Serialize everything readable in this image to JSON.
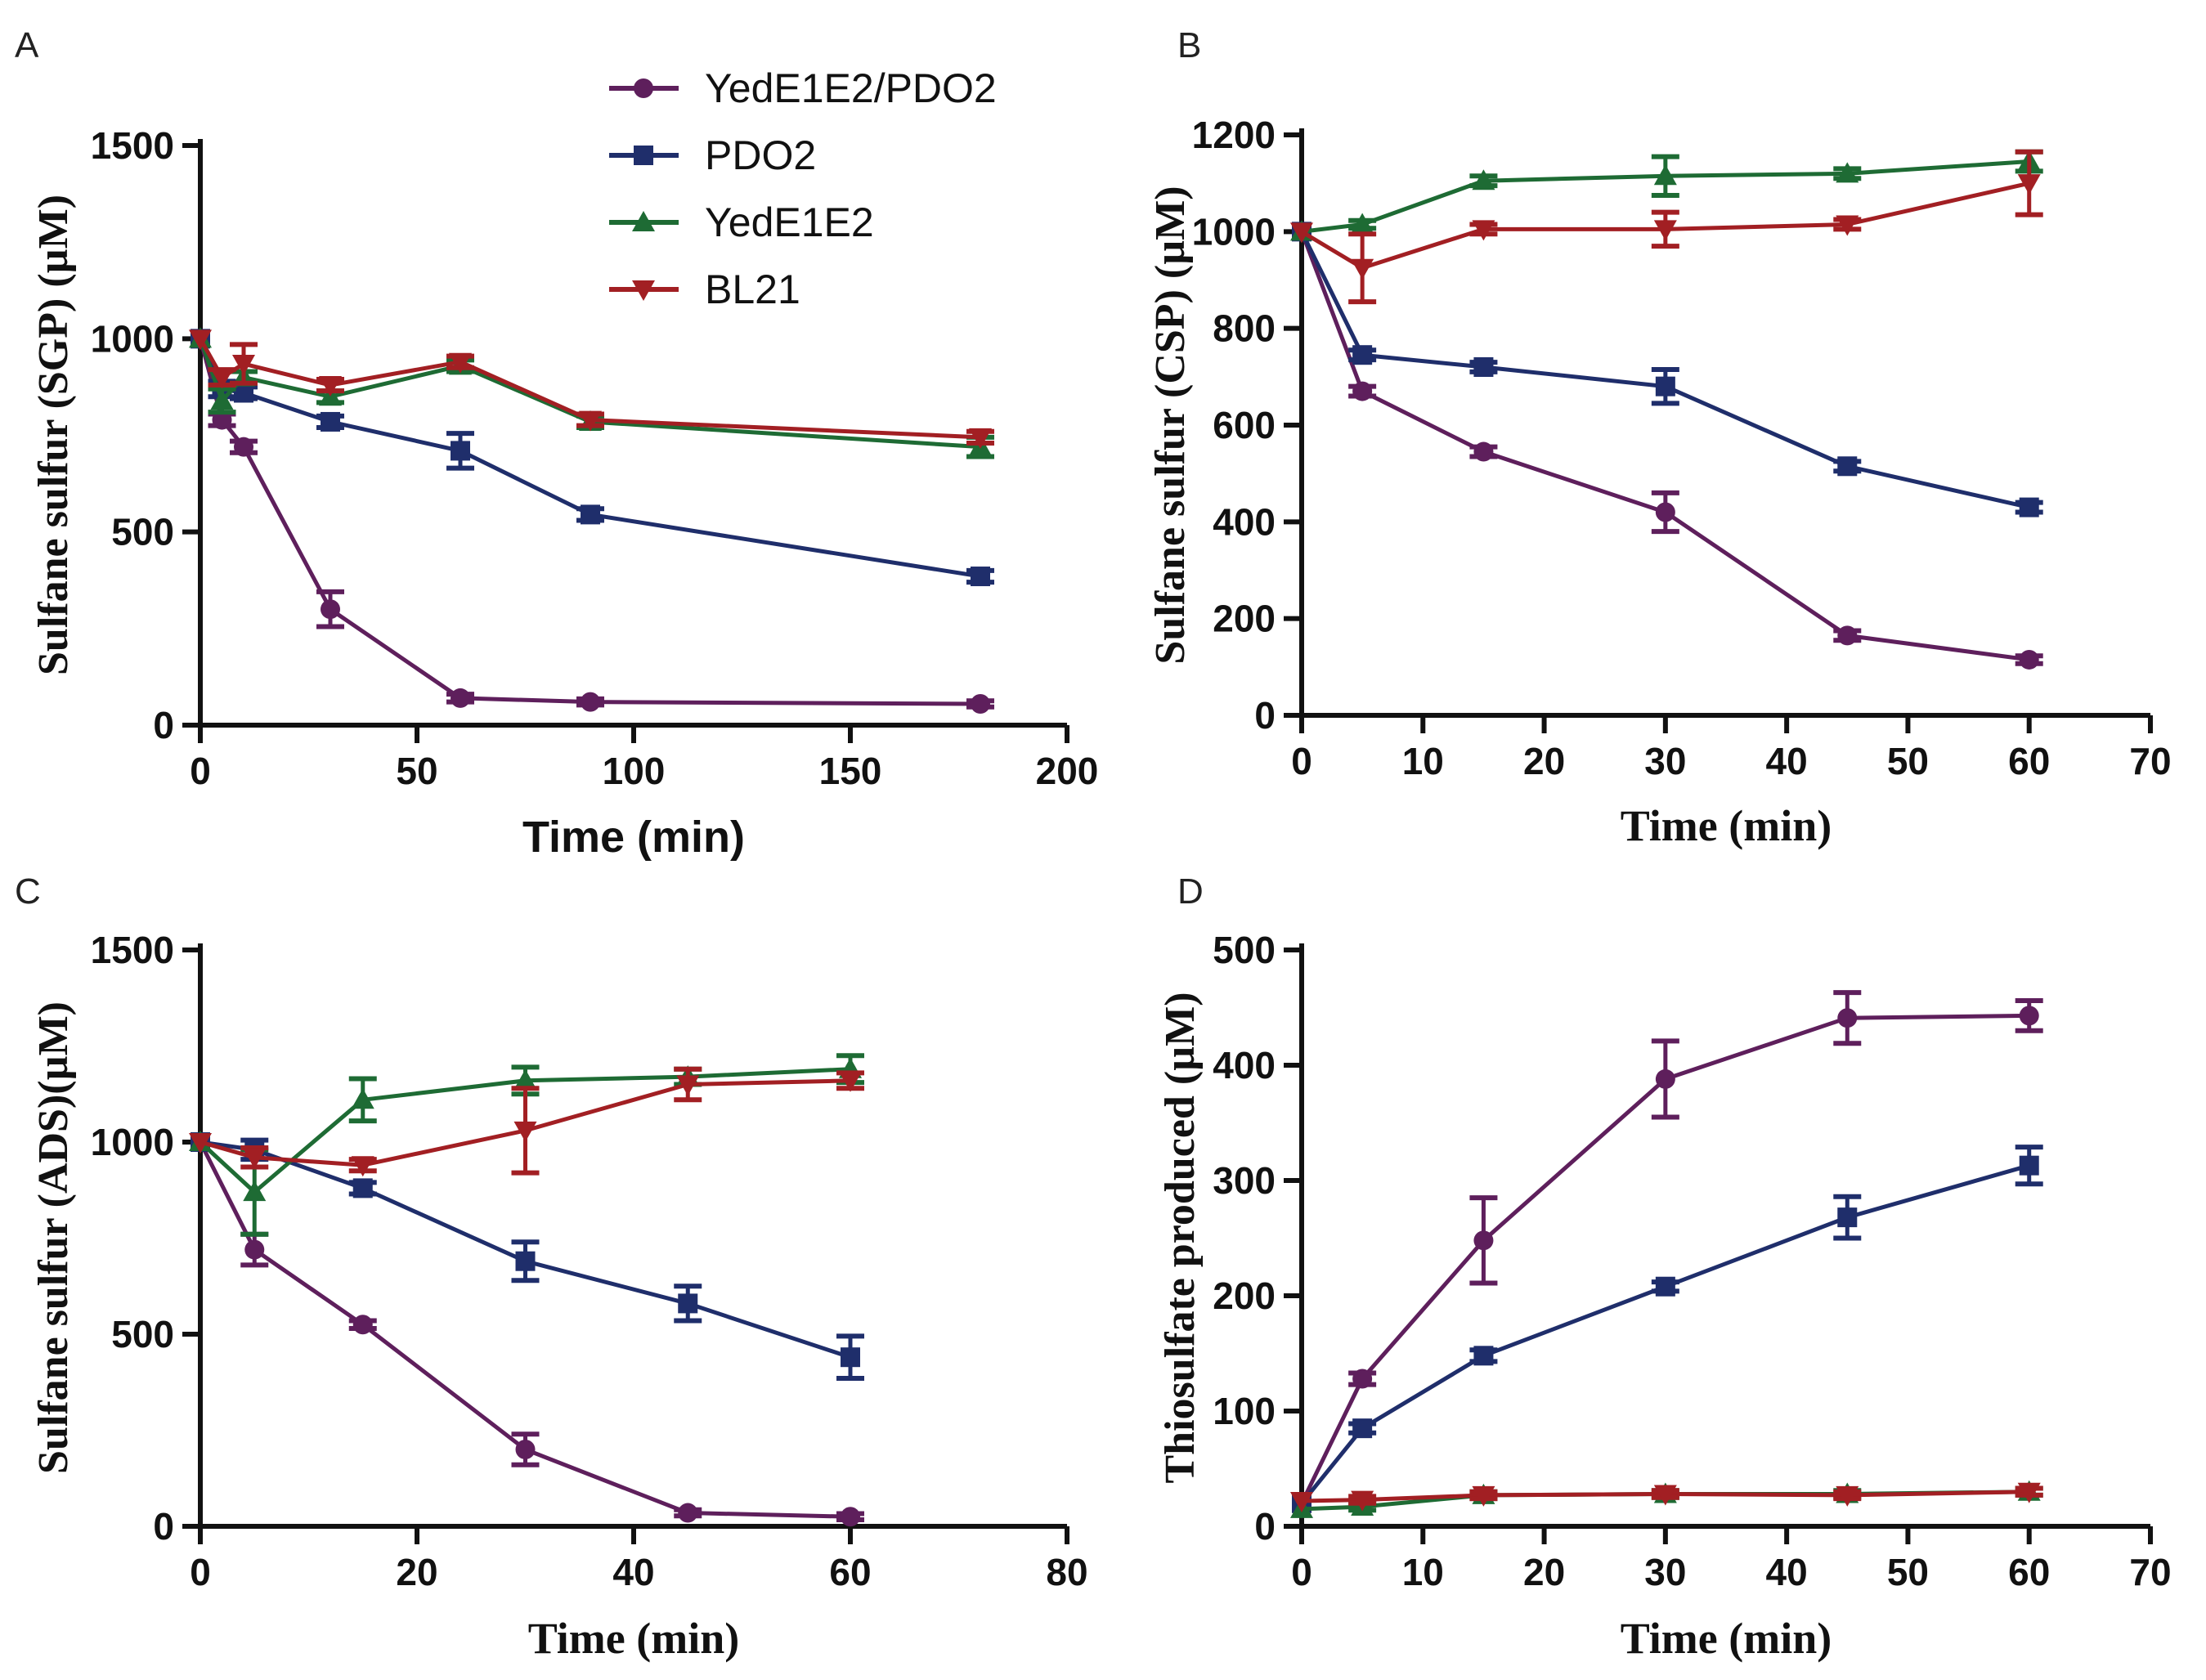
{
  "legend": {
    "placement": "top-center (panel A)",
    "entries": [
      {
        "key": "yede1e2_pdo2",
        "label": "YedE1E2/PDO2",
        "color": "#5E1F5C",
        "marker": "circle"
      },
      {
        "key": "pdo2",
        "label": "PDO2",
        "color": "#1F2E6B",
        "marker": "square"
      },
      {
        "key": "yede1e2",
        "label": "YedE1E2",
        "color": "#1E6B34",
        "marker": "triangle-up"
      },
      {
        "key": "bl21",
        "label": "BL21",
        "color": "#A21F23",
        "marker": "triangle-down"
      }
    ]
  },
  "chart_data": [
    {
      "panel": "A",
      "type": "line",
      "xlabel": "Time (min)",
      "ylabel": "Sulfane sulfur (SGP) (µM)",
      "xlim": [
        0,
        200
      ],
      "ylim": [
        0,
        1500
      ],
      "xticks": [
        0,
        50,
        100,
        150,
        200
      ],
      "yticks": [
        0,
        500,
        1000,
        1500
      ],
      "series": [
        {
          "key": "yede1e2_pdo2",
          "x": [
            0,
            5,
            10,
            30,
            60,
            90,
            180
          ],
          "y": [
            1000,
            790,
            720,
            300,
            70,
            60,
            55
          ],
          "err": [
            0,
            15,
            15,
            45,
            10,
            8,
            8
          ]
        },
        {
          "key": "pdo2",
          "x": [
            0,
            5,
            10,
            30,
            60,
            90,
            180
          ],
          "y": [
            1000,
            870,
            860,
            785,
            710,
            545,
            385
          ],
          "err": [
            0,
            20,
            15,
            15,
            45,
            15,
            15
          ]
        },
        {
          "key": "yede1e2",
          "x": [
            0,
            5,
            10,
            30,
            60,
            90,
            180
          ],
          "y": [
            1000,
            840,
            900,
            850,
            930,
            785,
            720
          ],
          "err": [
            0,
            30,
            15,
            15,
            15,
            15,
            25
          ]
        },
        {
          "key": "bl21",
          "x": [
            0,
            5,
            10,
            30,
            60,
            90,
            180
          ],
          "y": [
            1000,
            900,
            935,
            880,
            940,
            790,
            745
          ],
          "err": [
            0,
            20,
            50,
            15,
            15,
            15,
            15
          ]
        }
      ]
    },
    {
      "panel": "B",
      "type": "line",
      "xlabel": "Time (min)",
      "ylabel": "Sulfane sulfur (CSP) (µM)",
      "xlim": [
        0,
        70
      ],
      "ylim": [
        0,
        1200
      ],
      "xticks": [
        0,
        10,
        20,
        30,
        40,
        50,
        60,
        70
      ],
      "yticks": [
        0,
        200,
        400,
        600,
        800,
        1000,
        1200
      ],
      "series": [
        {
          "key": "yede1e2_pdo2",
          "x": [
            0,
            5,
            15,
            30,
            45,
            60
          ],
          "y": [
            1000,
            670,
            545,
            420,
            165,
            115
          ],
          "err": [
            0,
            10,
            10,
            40,
            10,
            8
          ]
        },
        {
          "key": "pdo2",
          "x": [
            0,
            5,
            15,
            30,
            45,
            60
          ],
          "y": [
            1000,
            745,
            720,
            680,
            515,
            430
          ],
          "err": [
            0,
            10,
            10,
            35,
            10,
            10
          ]
        },
        {
          "key": "yede1e2",
          "x": [
            0,
            5,
            15,
            30,
            45,
            60
          ],
          "y": [
            1000,
            1015,
            1105,
            1115,
            1120,
            1145
          ],
          "err": [
            0,
            8,
            10,
            40,
            10,
            20
          ]
        },
        {
          "key": "bl21",
          "x": [
            0,
            5,
            15,
            30,
            45,
            60
          ],
          "y": [
            1000,
            925,
            1005,
            1005,
            1015,
            1100
          ],
          "err": [
            0,
            70,
            10,
            35,
            10,
            65
          ]
        }
      ]
    },
    {
      "panel": "C",
      "type": "line",
      "xlabel": "Time (min)",
      "ylabel": "Sulfane sulfur (ADS)(µM)",
      "xlim": [
        0,
        80
      ],
      "ylim": [
        0,
        1500
      ],
      "xticks": [
        0,
        20,
        40,
        60,
        80
      ],
      "yticks": [
        0,
        500,
        1000,
        1500
      ],
      "series": [
        {
          "key": "yede1e2_pdo2",
          "x": [
            0,
            5,
            15,
            30,
            45,
            60
          ],
          "y": [
            1000,
            720,
            525,
            200,
            35,
            25
          ],
          "err": [
            0,
            40,
            10,
            40,
            8,
            8
          ]
        },
        {
          "key": "pdo2",
          "x": [
            0,
            5,
            15,
            30,
            45,
            60
          ],
          "y": [
            1000,
            980,
            880,
            690,
            580,
            440
          ],
          "err": [
            0,
            25,
            15,
            50,
            45,
            55
          ]
        },
        {
          "key": "yede1e2",
          "x": [
            0,
            5,
            15,
            30,
            45,
            60
          ],
          "y": [
            1000,
            870,
            1110,
            1160,
            1170,
            1190
          ],
          "err": [
            0,
            110,
            55,
            35,
            20,
            35
          ]
        },
        {
          "key": "bl21",
          "x": [
            0,
            5,
            15,
            30,
            45,
            60
          ],
          "y": [
            1000,
            960,
            940,
            1030,
            1150,
            1160
          ],
          "err": [
            0,
            25,
            15,
            110,
            40,
            20
          ]
        }
      ]
    },
    {
      "panel": "D",
      "type": "line",
      "xlabel": "Time (min)",
      "ylabel": "Thiosulfate produced (µM)",
      "xlim": [
        0,
        70
      ],
      "ylim": [
        0,
        500
      ],
      "xticks": [
        0,
        10,
        20,
        30,
        40,
        50,
        60,
        70
      ],
      "yticks": [
        0,
        100,
        200,
        300,
        400,
        500
      ],
      "series": [
        {
          "key": "yede1e2_pdo2",
          "x": [
            0,
            5,
            15,
            30,
            45,
            60
          ],
          "y": [
            20,
            128,
            248,
            388,
            441,
            443
          ],
          "err": [
            0,
            5,
            37,
            33,
            22,
            13
          ]
        },
        {
          "key": "pdo2",
          "x": [
            0,
            5,
            15,
            30,
            45,
            60
          ],
          "y": [
            20,
            85,
            148,
            208,
            268,
            313
          ],
          "err": [
            0,
            4,
            5,
            4,
            18,
            16
          ]
        },
        {
          "key": "yede1e2",
          "x": [
            0,
            5,
            15,
            30,
            45,
            60
          ],
          "y": [
            15,
            17,
            27,
            28,
            28,
            30
          ],
          "err": [
            0,
            3,
            3,
            3,
            3,
            3
          ]
        },
        {
          "key": "bl21",
          "x": [
            0,
            5,
            15,
            30,
            45,
            60
          ],
          "y": [
            22,
            23,
            27,
            28,
            27,
            30
          ],
          "err": [
            0,
            3,
            3,
            3,
            3,
            3
          ]
        }
      ]
    }
  ]
}
